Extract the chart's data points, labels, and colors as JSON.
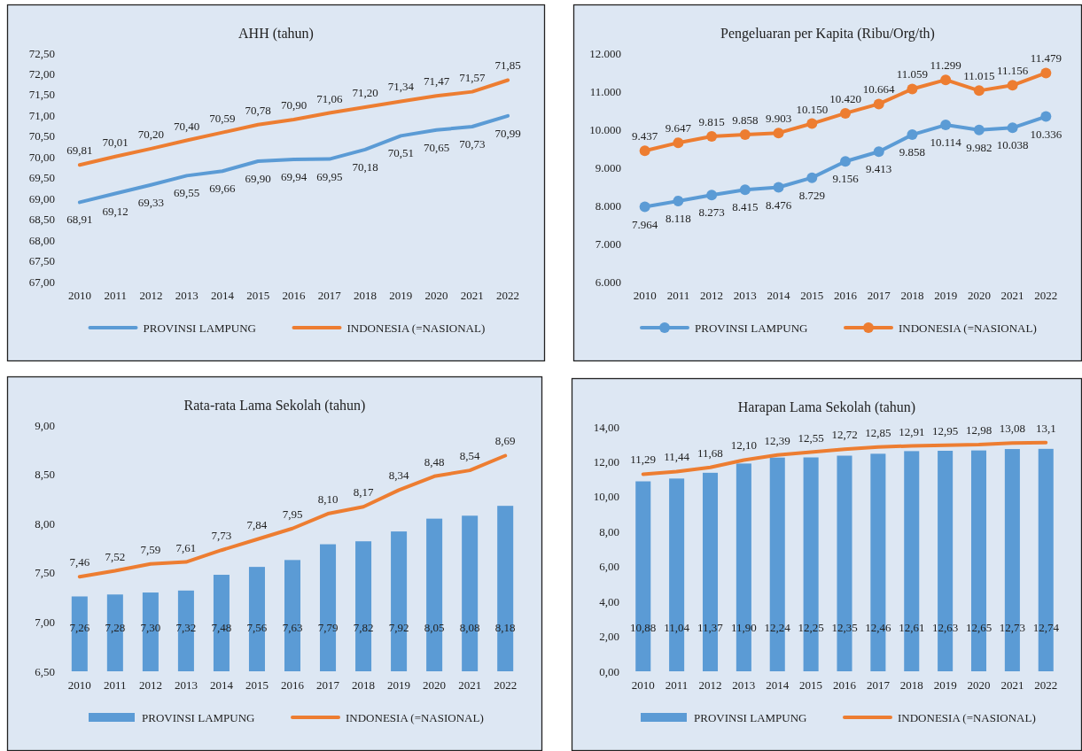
{
  "chart_data": [
    {
      "type": "line",
      "title": "AHH (tahun)",
      "categories": [
        "2010",
        "2011",
        "2012",
        "2013",
        "2014",
        "2015",
        "2016",
        "2017",
        "2018",
        "2019",
        "2020",
        "2021",
        "2022"
      ],
      "series": [
        {
          "name": "PROVINSI LAMPUNG",
          "color": "#5b9bd5",
          "values": [
            68.91,
            69.12,
            69.33,
            69.55,
            69.66,
            69.9,
            69.94,
            69.95,
            70.18,
            70.51,
            70.65,
            70.73,
            70.99
          ],
          "value_labels": [
            "68,91",
            "69,12",
            "69,33",
            "69,55",
            "69,66",
            "69,90",
            "69,94",
            "69,95",
            "70,18",
            "70,51",
            "70,65",
            "70,73",
            "70,99"
          ]
        },
        {
          "name": "INDONESIA (=NASIONAL)",
          "color": "#ed7d31",
          "values": [
            69.81,
            70.01,
            70.2,
            70.4,
            70.59,
            70.78,
            70.9,
            71.06,
            71.2,
            71.34,
            71.47,
            71.57,
            71.85
          ],
          "value_labels": [
            "69,81",
            "70,01",
            "70,20",
            "70,40",
            "70,59",
            "70,78",
            "70,90",
            "71,06",
            "71,20",
            "71,34",
            "71,47",
            "71,57",
            "71,85"
          ]
        }
      ],
      "ylim": [
        67,
        72.5
      ],
      "yticks": [
        {
          "value": 67,
          "label": "67,00"
        },
        {
          "value": 67.5,
          "label": "67,50"
        },
        {
          "value": 68,
          "label": "68,00"
        },
        {
          "value": 68.5,
          "label": "68,50"
        },
        {
          "value": 69,
          "label": "69,00"
        },
        {
          "value": 69.5,
          "label": "69,50"
        },
        {
          "value": 70,
          "label": "70,00"
        },
        {
          "value": 70.5,
          "label": "70,50"
        },
        {
          "value": 71,
          "label": "71,00"
        },
        {
          "value": 71.5,
          "label": "71,50"
        },
        {
          "value": 72,
          "label": "72,00"
        },
        {
          "value": 72.5,
          "label": "72,50"
        }
      ],
      "legend": "bottom",
      "grid": false
    },
    {
      "type": "line",
      "title": "Pengeluaran per Kapita (Ribu/Org/th)",
      "categories": [
        "2010",
        "2011",
        "2012",
        "2013",
        "2014",
        "2015",
        "2016",
        "2017",
        "2018",
        "2019",
        "2020",
        "2021",
        "2022"
      ],
      "series": [
        {
          "name": "PROVINSI LAMPUNG",
          "color": "#5b9bd5",
          "values": [
            7964,
            8118,
            8273,
            8415,
            8476,
            8729,
            9156,
            9413,
            9858,
            10114,
            9982,
            10038,
            10336
          ],
          "value_labels": [
            "7.964",
            "8.118",
            "8.273",
            "8.415",
            "8.476",
            "8.729",
            "9.156",
            "9.413",
            "9.858",
            "10.114",
            "9.982",
            "10.038",
            "10.336"
          ]
        },
        {
          "name": "INDONESIA (=NASIONAL)",
          "color": "#ed7d31",
          "values": [
            9437,
            9647,
            9815,
            9858,
            9903,
            10150,
            10420,
            10664,
            11059,
            11299,
            11015,
            11156,
            11479
          ],
          "value_labels": [
            "9.437",
            "9.647",
            "9.815",
            "9.858",
            "9.903",
            "10.150",
            "10.420",
            "10.664",
            "11.059",
            "11.299",
            "11.015",
            "11.156",
            "11.479"
          ]
        }
      ],
      "ylim": [
        6000,
        12000
      ],
      "yticks": [
        {
          "value": 6000,
          "label": "6.000"
        },
        {
          "value": 7000,
          "label": "7.000"
        },
        {
          "value": 8000,
          "label": "8.000"
        },
        {
          "value": 9000,
          "label": "9.000"
        },
        {
          "value": 10000,
          "label": "10.000"
        },
        {
          "value": 11000,
          "label": "11.000"
        },
        {
          "value": 12000,
          "label": "12.000"
        }
      ],
      "marker": "circle",
      "legend": "bottom",
      "grid": false
    },
    {
      "type": "bar",
      "title": "Rata-rata Lama Sekolah (tahun)",
      "categories": [
        "2010",
        "2011",
        "2012",
        "2013",
        "2014",
        "2015",
        "2016",
        "2017",
        "2018",
        "2019",
        "2020",
        "2021",
        "2022"
      ],
      "series": [
        {
          "name": "PROVINSI LAMPUNG",
          "color": "#5b9bd5",
          "values": [
            7.26,
            7.28,
            7.3,
            7.32,
            7.48,
            7.56,
            7.63,
            7.79,
            7.82,
            7.92,
            8.05,
            8.08,
            8.18
          ],
          "value_labels": [
            "7,26",
            "7,28",
            "7,30",
            "7,32",
            "7,48",
            "7,56",
            "7,63",
            "7,79",
            "7,82",
            "7,92",
            "8,05",
            "8,08",
            "8,18"
          ]
        },
        {
          "name": "INDONESIA (=NASIONAL)",
          "type": "line",
          "color": "#ed7d31",
          "values": [
            7.46,
            7.52,
            7.59,
            7.61,
            7.73,
            7.84,
            7.95,
            8.1,
            8.17,
            8.34,
            8.48,
            8.54,
            8.69
          ],
          "value_labels": [
            "7,46",
            "7,52",
            "7,59",
            "7,61",
            "7,73",
            "7,84",
            "7,95",
            "8,10",
            "8,17",
            "8,34",
            "8,48",
            "8,54",
            "8,69"
          ]
        }
      ],
      "ylim": [
        6.5,
        9
      ],
      "yticks": [
        {
          "value": 6.5,
          "label": "6,50"
        },
        {
          "value": 7,
          "label": "7,00"
        },
        {
          "value": 7.5,
          "label": "7,50"
        },
        {
          "value": 8,
          "label": "8,00"
        },
        {
          "value": 8.5,
          "label": "8,50"
        },
        {
          "value": 9,
          "label": "9,00"
        }
      ],
      "legend": "bottom",
      "grid": false
    },
    {
      "type": "bar",
      "title": "Harapan Lama Sekolah (tahun)",
      "categories": [
        "2010",
        "2011",
        "2012",
        "2013",
        "2014",
        "2015",
        "2016",
        "2017",
        "2018",
        "2019",
        "2020",
        "2021",
        "2022"
      ],
      "series": [
        {
          "name": "PROVINSI LAMPUNG",
          "color": "#5b9bd5",
          "values": [
            10.88,
            11.04,
            11.37,
            11.9,
            12.24,
            12.25,
            12.35,
            12.46,
            12.61,
            12.63,
            12.65,
            12.73,
            12.74
          ],
          "value_labels": [
            "10,88",
            "11,04",
            "11,37",
            "11,90",
            "12,24",
            "12,25",
            "12,35",
            "12,46",
            "12,61",
            "12,63",
            "12,65",
            "12,73",
            "12,74"
          ]
        },
        {
          "name": "INDONESIA (=NASIONAL)",
          "type": "line",
          "color": "#ed7d31",
          "values": [
            11.29,
            11.44,
            11.68,
            12.1,
            12.39,
            12.55,
            12.72,
            12.85,
            12.91,
            12.95,
            12.98,
            13.08,
            13.1
          ],
          "value_labels": [
            "11,29",
            "11,44",
            "11,68",
            "12,10",
            "12,39",
            "12,55",
            "12,72",
            "12,85",
            "12,91",
            "12,95",
            "12,98",
            "13,08",
            "13,1"
          ]
        }
      ],
      "ylim": [
        0,
        14
      ],
      "yticks": [
        {
          "value": 0,
          "label": "0,00"
        },
        {
          "value": 2,
          "label": "2,00"
        },
        {
          "value": 4,
          "label": "4,00"
        },
        {
          "value": 6,
          "label": "6,00"
        },
        {
          "value": 8,
          "label": "8,00"
        },
        {
          "value": 10,
          "label": "10,00"
        },
        {
          "value": 12,
          "label": "12,00"
        },
        {
          "value": 14,
          "label": "14,00"
        }
      ],
      "legend": "bottom",
      "grid": false
    }
  ]
}
